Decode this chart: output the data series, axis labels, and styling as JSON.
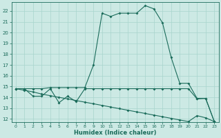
{
  "xlabel": "Humidex (Indice chaleur)",
  "xlim": [
    -0.5,
    23.5
  ],
  "ylim": [
    11.7,
    22.8
  ],
  "yticks": [
    12,
    13,
    14,
    15,
    16,
    17,
    18,
    19,
    20,
    21,
    22
  ],
  "xticks": [
    0,
    1,
    2,
    3,
    4,
    5,
    6,
    7,
    8,
    9,
    10,
    11,
    12,
    13,
    14,
    15,
    16,
    17,
    18,
    19,
    20,
    21,
    22,
    23
  ],
  "bg_color": "#cce9e4",
  "grid_color": "#a8d4cc",
  "line_color": "#1a6b5a",
  "line1_x": [
    0,
    1,
    2,
    3,
    4,
    5,
    6,
    7,
    8,
    9,
    10,
    11,
    12,
    13,
    14,
    15,
    16,
    17,
    18,
    19,
    20,
    21,
    22,
    23
  ],
  "line1_y": [
    14.8,
    14.8,
    14.8,
    14.8,
    14.9,
    14.9,
    14.9,
    14.9,
    14.9,
    17.0,
    21.8,
    21.5,
    21.8,
    21.8,
    21.8,
    22.5,
    22.2,
    20.9,
    17.7,
    15.3,
    15.3,
    13.9,
    13.9,
    11.75
  ],
  "line2_x": [
    0,
    1,
    2,
    3,
    4,
    5,
    6,
    7,
    8,
    9,
    10,
    11,
    12,
    13,
    14,
    15,
    16,
    17,
    18,
    19,
    20,
    21,
    22,
    23
  ],
  "line2_y": [
    14.8,
    14.8,
    14.1,
    14.1,
    14.8,
    13.5,
    14.1,
    13.6,
    14.8,
    14.8,
    14.8,
    14.8,
    14.8,
    14.8,
    14.8,
    14.8,
    14.8,
    14.8,
    14.8,
    14.8,
    14.8,
    13.85,
    13.9,
    11.75
  ],
  "line3_x": [
    0,
    1,
    2,
    3,
    4,
    5,
    6,
    7,
    8,
    9,
    10,
    11,
    12,
    13,
    14,
    15,
    16,
    17,
    18,
    19,
    20,
    21,
    22,
    23
  ],
  "line3_y": [
    14.8,
    14.65,
    14.5,
    14.3,
    14.15,
    14.0,
    13.85,
    13.7,
    13.55,
    13.4,
    13.25,
    13.1,
    12.95,
    12.8,
    12.65,
    12.5,
    12.35,
    12.2,
    12.05,
    11.9,
    11.75,
    12.3,
    12.1,
    11.75
  ]
}
